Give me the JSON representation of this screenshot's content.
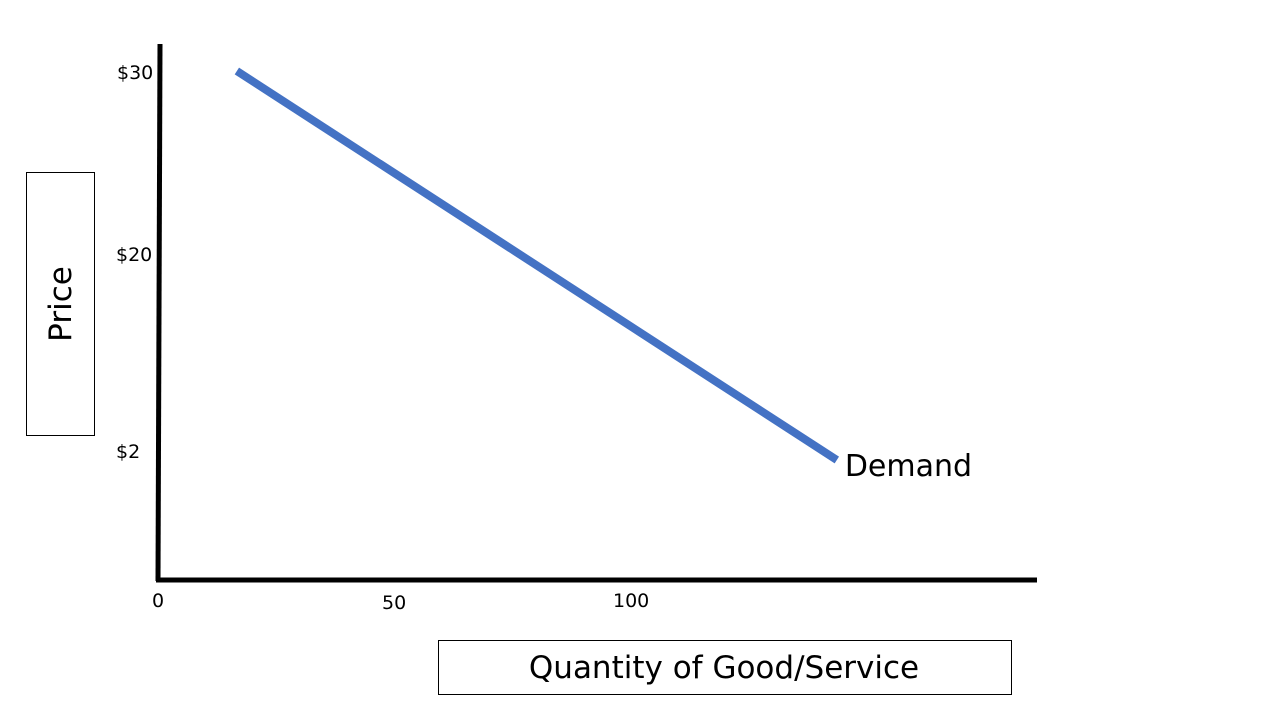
{
  "chart_data": {
    "type": "line",
    "xlabel": "Quantity of Good/Service",
    "ylabel": "Price",
    "x_ticks": [
      {
        "label": "0",
        "value": 0
      },
      {
        "label": "50",
        "value": 50
      },
      {
        "label": "100",
        "value": 100
      }
    ],
    "y_ticks": [
      {
        "label": "$30",
        "value": 30
      },
      {
        "label": "$20",
        "value": 20
      },
      {
        "label": "$2",
        "value": 2
      }
    ],
    "series": [
      {
        "name": "Demand",
        "color": "#4472c4",
        "points": [
          {
            "x": 17,
            "y": 30
          },
          {
            "x": 148,
            "y": 2
          }
        ]
      }
    ],
    "grid": false,
    "legend": "none",
    "axis_color": "#000000"
  }
}
